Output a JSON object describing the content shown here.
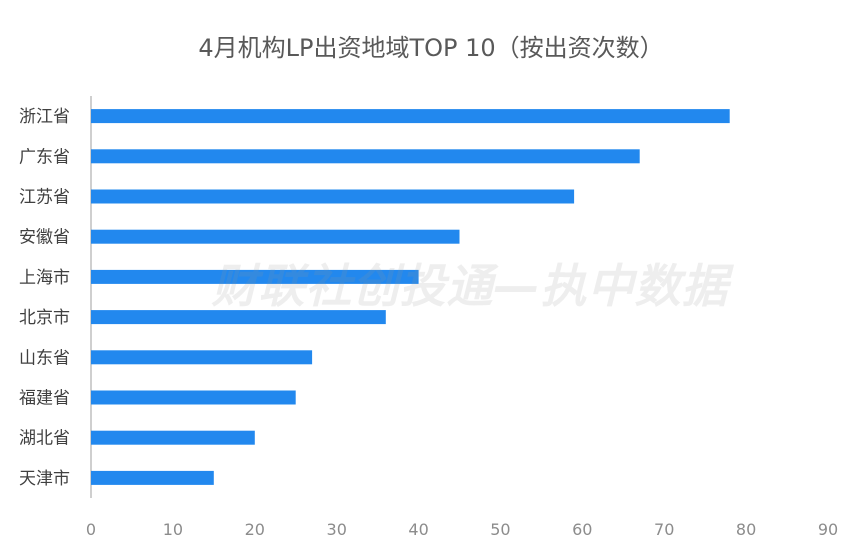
{
  "chart_data": {
    "type": "bar",
    "orientation": "horizontal",
    "title": "4月机构LP出资地域TOP 10（按出资次数）",
    "categories": [
      "浙江省",
      "广东省",
      "江苏省",
      "安徽省",
      "上海市",
      "北京市",
      "山东省",
      "福建省",
      "湖北省",
      "天津市"
    ],
    "values": [
      78,
      67,
      59,
      45,
      40,
      36,
      27,
      25,
      20,
      15
    ],
    "xlim": [
      0,
      90
    ],
    "xticks": [
      0,
      10,
      20,
      30,
      40,
      50,
      60,
      70,
      80,
      90
    ],
    "grid": false,
    "legend": "none",
    "bar_color": "#2288ee",
    "axis_color": "#bfbfbf"
  },
  "watermark": "财联社创投通—执中数据"
}
